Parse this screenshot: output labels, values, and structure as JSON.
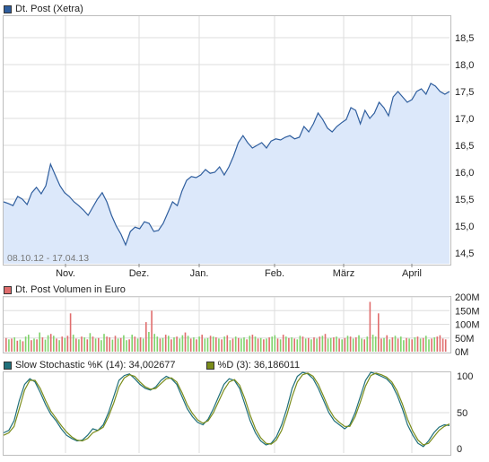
{
  "colors": {
    "price_line": "#2f5e9e",
    "price_fill": "#dce8fa",
    "grid": "#dddddd",
    "vol_up": "#7fd36b",
    "vol_down": "#e06d6d",
    "stoch_k": "#1f6f7a",
    "stoch_d": "#7a8c1a",
    "swatch_price": "#2f5e9e",
    "swatch_vol": "#e06d6d",
    "swatch_k": "#1f6f7a",
    "swatch_d": "#7a8c1a"
  },
  "price_panel": {
    "legend": "Dt. Post (Xetra)",
    "range_label": "08.10.12 - 17.04.13"
  },
  "volume_panel": {
    "legend": "Dt. Post Volumen in Euro"
  },
  "stoch_panel": {
    "legend_k": "Slow Stochastic %K (14): 34,002677",
    "legend_d": "%D (3): 36,186011"
  },
  "chart_data": [
    {
      "type": "area",
      "series": [
        {
          "name": "Dt. Post (Xetra)",
          "x": [
            0,
            2,
            4,
            6,
            8,
            10,
            12,
            14,
            16,
            18,
            20,
            22,
            24,
            26,
            28,
            30,
            32,
            34,
            36,
            38,
            40,
            42,
            44,
            46,
            48,
            50,
            52,
            54,
            56,
            58,
            60,
            62,
            64,
            66,
            68,
            70,
            72,
            74,
            76,
            78,
            80,
            82,
            84,
            86,
            88,
            90,
            92,
            94,
            96,
            98,
            100,
            102,
            104,
            106,
            108,
            110,
            112,
            114,
            116,
            118,
            120,
            122,
            124,
            126,
            128,
            130,
            132,
            134,
            136,
            138,
            140,
            142,
            144,
            146,
            148,
            150,
            152,
            154,
            156,
            158,
            160,
            162,
            164,
            166,
            168,
            170,
            172,
            174,
            176,
            178,
            180,
            182,
            184,
            186,
            188,
            190
          ],
          "values": [
            15.45,
            15.42,
            15.38,
            15.55,
            15.5,
            15.4,
            15.62,
            15.72,
            15.6,
            15.75,
            16.15,
            15.95,
            15.75,
            15.62,
            15.55,
            15.45,
            15.38,
            15.3,
            15.2,
            15.35,
            15.5,
            15.62,
            15.45,
            15.2,
            15.0,
            14.85,
            14.65,
            14.9,
            14.98,
            14.95,
            15.08,
            15.05,
            14.9,
            14.92,
            15.05,
            15.25,
            15.45,
            15.38,
            15.65,
            15.85,
            15.92,
            15.9,
            15.95,
            16.05,
            15.98,
            16.0,
            16.1,
            15.95,
            16.1,
            16.3,
            16.55,
            16.68,
            16.55,
            16.45,
            16.5,
            16.55,
            16.45,
            16.58,
            16.62,
            16.6,
            16.65,
            16.68,
            16.62,
            16.65,
            16.85,
            16.75,
            16.9,
            17.1,
            16.98,
            16.82,
            16.75,
            16.85,
            16.92,
            16.98,
            17.2,
            17.15,
            16.9,
            17.15,
            17.0,
            17.1,
            17.3,
            17.2,
            17.05,
            17.4,
            17.5,
            17.4,
            17.3,
            17.35,
            17.5,
            17.55,
            17.45,
            17.65,
            17.6,
            17.5,
            17.45,
            17.5
          ]
        }
      ],
      "xlim": [
        0,
        190
      ],
      "ylim": [
        14.3,
        18.9
      ],
      "x_tick_labels": [
        "Nov.",
        "Dez.",
        "Jan.",
        "Feb.",
        "März",
        "April"
      ],
      "y_ticks": [
        14.5,
        15.0,
        15.5,
        16.0,
        16.5,
        17.0,
        17.5,
        18.0,
        18.5
      ],
      "y_tick_labels": [
        "14,5",
        "15,0",
        "15,5",
        "16,0",
        "16,5",
        "17,0",
        "17,5",
        "18,0",
        "18,5"
      ],
      "grid": true
    },
    {
      "type": "bar",
      "series": [
        {
          "name": "Dt. Post Volumen in Euro",
          "values": [
            50,
            45,
            48,
            52,
            40,
            44,
            38,
            55,
            62,
            42,
            48,
            45,
            70,
            52,
            44,
            60,
            65,
            58,
            48,
            42,
            55,
            50,
            58,
            140,
            62,
            48,
            45,
            55,
            52,
            45,
            68,
            55,
            48,
            50,
            42,
            65,
            55,
            52,
            44,
            58,
            48,
            50,
            60,
            42,
            45,
            62,
            55,
            48,
            52,
            48,
            108,
            72,
            150,
            65,
            55,
            48,
            50,
            62,
            58,
            45,
            52,
            55,
            48,
            60,
            70,
            58,
            48,
            52,
            45,
            55,
            62,
            48,
            50,
            58,
            55,
            52,
            48,
            45,
            55,
            60,
            42,
            48,
            55,
            50,
            48,
            52,
            45,
            58,
            62,
            55,
            48,
            50,
            45,
            48,
            52,
            55,
            60,
            48,
            45,
            62,
            55,
            50,
            52,
            48,
            45,
            58,
            55,
            48,
            50,
            45,
            52,
            48,
            55,
            58,
            65,
            48,
            50,
            52,
            55,
            48,
            45,
            50,
            58,
            55,
            48,
            52,
            60,
            48,
            45,
            55,
            182,
            62,
            55,
            140,
            48,
            50,
            60,
            45,
            52,
            58,
            48,
            55,
            42,
            50,
            48,
            45,
            52,
            55,
            48,
            50,
            58,
            45,
            48,
            52,
            55,
            60,
            48,
            45
          ],
          "up": [
            false,
            true,
            false,
            true,
            false,
            true,
            false,
            true,
            true,
            false,
            true,
            false,
            true,
            false,
            true,
            true,
            false,
            true,
            false,
            true,
            false,
            true,
            false,
            false,
            true,
            false,
            true,
            false,
            true,
            false,
            true,
            false,
            true,
            false,
            true,
            true,
            false,
            false,
            true,
            false,
            true,
            false,
            true,
            true,
            false,
            true,
            false,
            true,
            false,
            true,
            false,
            true,
            false,
            true,
            true,
            false,
            true,
            false,
            true,
            false,
            true,
            false,
            true,
            true,
            false,
            true,
            false,
            true,
            false,
            true,
            false,
            true,
            true,
            false,
            true,
            false,
            true,
            false,
            true,
            false,
            true,
            false,
            true,
            false,
            true,
            true,
            false,
            true,
            false,
            true,
            false,
            true,
            false,
            true,
            false,
            true,
            true,
            false,
            true,
            false,
            true,
            false,
            true,
            false,
            true,
            true,
            false,
            true,
            false,
            true,
            false,
            true,
            false,
            true,
            false,
            true,
            true,
            false,
            true,
            false,
            true,
            false,
            true,
            false,
            true,
            false,
            true,
            true,
            false,
            true,
            false,
            true,
            true,
            false,
            false,
            true,
            false,
            true,
            false,
            true,
            false,
            true,
            true,
            false,
            true,
            false,
            true,
            false,
            true,
            false,
            true,
            true,
            false,
            true,
            false
          ]
        }
      ],
      "ylim": [
        0,
        200
      ],
      "y_ticks": [
        0,
        50,
        100,
        150,
        200
      ],
      "y_tick_labels": [
        "0M",
        "50M",
        "100M",
        "150M",
        "200M"
      ],
      "grid": true
    },
    {
      "type": "line",
      "series": [
        {
          "name": "Slow Stochastic %K (14)",
          "values": [
            25,
            28,
            40,
            65,
            85,
            92,
            88,
            75,
            60,
            48,
            40,
            30,
            22,
            18,
            15,
            16,
            22,
            30,
            28,
            35,
            50,
            70,
            90,
            96,
            98,
            92,
            85,
            80,
            78,
            82,
            90,
            95,
            92,
            85,
            70,
            55,
            45,
            38,
            35,
            42,
            55,
            70,
            85,
            92,
            90,
            80,
            60,
            40,
            25,
            15,
            10,
            12,
            20,
            35,
            55,
            80,
            95,
            100,
            98,
            92,
            80,
            65,
            50,
            40,
            35,
            30,
            35,
            50,
            70,
            90,
            100,
            98,
            95,
            92,
            85,
            72,
            55,
            35,
            22,
            12,
            8,
            15,
            25,
            32,
            35,
            34
          ]
        },
        {
          "name": "%D (3)",
          "values": [
            22,
            25,
            33,
            55,
            78,
            90,
            90,
            80,
            65,
            52,
            43,
            34,
            26,
            20,
            16,
            15,
            18,
            25,
            28,
            32,
            45,
            62,
            82,
            93,
            97,
            95,
            88,
            82,
            79,
            80,
            86,
            92,
            93,
            88,
            75,
            60,
            49,
            41,
            37,
            40,
            50,
            64,
            78,
            88,
            91,
            84,
            67,
            47,
            30,
            19,
            12,
            11,
            16,
            28,
            47,
            70,
            88,
            97,
            99,
            95,
            85,
            70,
            55,
            44,
            38,
            33,
            33,
            45,
            63,
            83,
            96,
            99,
            97,
            94,
            88,
            77,
            61,
            42,
            27,
            16,
            10,
            12,
            20,
            28,
            33,
            36
          ]
        }
      ],
      "ylim": [
        0,
        100
      ],
      "y_ticks": [
        0,
        50,
        100
      ],
      "y_tick_labels": [
        "0",
        "50",
        "100"
      ],
      "grid": true
    }
  ]
}
